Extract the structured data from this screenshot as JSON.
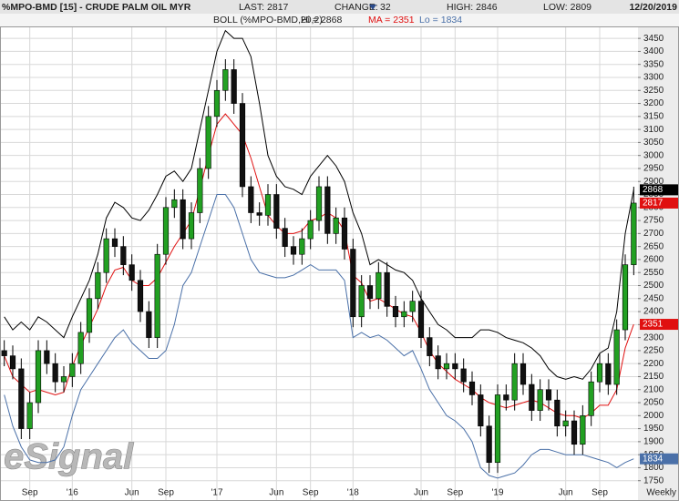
{
  "header": {
    "title": "%MPO-BMD [15] - CRUDE PALM OIL MYR",
    "last_label": "LAST:",
    "last": 2817,
    "change_label": "CHANGE:",
    "change": 32,
    "high_label": "HIGH:",
    "high": 2846,
    "low_label": "LOW:",
    "low": 2809,
    "date": "12/20/2019"
  },
  "chart_data": {
    "type": "candlestick",
    "indicator": "BOLL (%MPO-BMD,20,2)",
    "periodicity": "Weekly",
    "watermark": "eSignal",
    "up_color": "#22a022",
    "down_color": "#111111",
    "categories": [
      null,
      null,
      null,
      "Sep",
      null,
      null,
      null,
      null,
      "'16",
      null,
      null,
      null,
      null,
      null,
      null,
      "Jun",
      null,
      null,
      null,
      "Sep",
      null,
      null,
      null,
      null,
      null,
      "'17",
      null,
      null,
      null,
      null,
      null,
      null,
      "Jun",
      null,
      null,
      null,
      "Sep",
      null,
      null,
      null,
      null,
      "'18",
      null,
      null,
      null,
      null,
      null,
      null,
      null,
      "Jun",
      null,
      null,
      null,
      "Sep",
      null,
      null,
      null,
      null,
      "'19",
      null,
      null,
      null,
      null,
      null,
      null,
      null,
      "Jun",
      null,
      null,
      null,
      "Sep",
      null,
      null,
      null,
      null
    ],
    "open": [
      2250,
      2230,
      2180,
      1950,
      2050,
      2250,
      2200,
      2130,
      2150,
      2200,
      2320,
      2450,
      2550,
      2680,
      2650,
      2580,
      2520,
      2400,
      2300,
      2620,
      2800,
      2830,
      2680,
      2780,
      2950,
      3150,
      3250,
      3330,
      3200,
      2880,
      2780,
      2770,
      2850,
      2720,
      2650,
      2620,
      2680,
      2750,
      2880,
      2700,
      2760,
      2640,
      2380,
      2500,
      2450,
      2550,
      2420,
      2380,
      2400,
      2440,
      2300,
      2230,
      2180,
      2200,
      2180,
      2130,
      2080,
      1960,
      1820,
      2080,
      2060,
      2200,
      2120,
      2020,
      2100,
      2060,
      1960,
      1980,
      1890,
      2000,
      2130,
      2200,
      2120,
      2330,
      2580
    ],
    "high": [
      2290,
      2270,
      2220,
      2090,
      2290,
      2290,
      2240,
      2190,
      2240,
      2360,
      2490,
      2590,
      2720,
      2720,
      2690,
      2620,
      2560,
      2440,
      2660,
      2840,
      2870,
      2870,
      2820,
      2990,
      3190,
      3290,
      3370,
      3370,
      3240,
      2920,
      2820,
      2890,
      2890,
      2760,
      2690,
      2720,
      2790,
      2920,
      2920,
      2800,
      2800,
      2680,
      2540,
      2540,
      2590,
      2590,
      2460,
      2440,
      2480,
      2480,
      2340,
      2270,
      2240,
      2240,
      2220,
      2170,
      2120,
      2000,
      2120,
      2120,
      2240,
      2240,
      2160,
      2140,
      2140,
      2100,
      2020,
      2020,
      2040,
      2170,
      2240,
      2240,
      2370,
      2620,
      2880
    ],
    "low": [
      2190,
      2140,
      1910,
      1910,
      2010,
      2160,
      2090,
      2090,
      2110,
      2160,
      2280,
      2410,
      2510,
      2610,
      2540,
      2480,
      2360,
      2260,
      2260,
      2580,
      2760,
      2640,
      2640,
      2740,
      2910,
      3110,
      3210,
      3160,
      2840,
      2740,
      2730,
      2730,
      2680,
      2610,
      2580,
      2580,
      2640,
      2710,
      2660,
      2660,
      2600,
      2340,
      2340,
      2410,
      2410,
      2380,
      2340,
      2340,
      2360,
      2260,
      2190,
      2140,
      2140,
      2140,
      2090,
      2040,
      1920,
      1780,
      1780,
      2020,
      2020,
      2080,
      1980,
      1980,
      2020,
      1920,
      1920,
      1850,
      1850,
      1960,
      2090,
      2080,
      2080,
      2290,
      2540
    ],
    "close": [
      2230,
      2180,
      1950,
      2050,
      2250,
      2200,
      2130,
      2150,
      2200,
      2320,
      2450,
      2550,
      2680,
      2650,
      2580,
      2520,
      2400,
      2300,
      2620,
      2800,
      2830,
      2680,
      2780,
      2950,
      3150,
      3250,
      3330,
      3200,
      2880,
      2780,
      2770,
      2850,
      2720,
      2650,
      2620,
      2680,
      2750,
      2880,
      2700,
      2760,
      2640,
      2380,
      2500,
      2450,
      2550,
      2420,
      2380,
      2400,
      2440,
      2300,
      2230,
      2180,
      2200,
      2180,
      2130,
      2080,
      1960,
      1820,
      2080,
      2060,
      2200,
      2120,
      2020,
      2100,
      2060,
      1960,
      1980,
      1890,
      2000,
      2130,
      2200,
      2120,
      2330,
      2580,
      2817
    ],
    "series": [
      {
        "name": "Hi =",
        "color": "#000000",
        "values": [
          2380,
          2330,
          2360,
          2330,
          2380,
          2360,
          2330,
          2300,
          2380,
          2450,
          2520,
          2620,
          2760,
          2820,
          2800,
          2760,
          2750,
          2790,
          2850,
          2920,
          2940,
          2900,
          2950,
          3100,
          3250,
          3400,
          3480,
          3450,
          3450,
          3380,
          3200,
          3000,
          2920,
          2880,
          2870,
          2850,
          2920,
          2960,
          3000,
          2960,
          2900,
          2780,
          2700,
          2580,
          2600,
          2580,
          2560,
          2550,
          2520,
          2450,
          2400,
          2350,
          2330,
          2300,
          2300,
          2300,
          2330,
          2330,
          2320,
          2300,
          2290,
          2280,
          2260,
          2230,
          2180,
          2150,
          2140,
          2150,
          2140,
          2180,
          2240,
          2260,
          2400,
          2700,
          2868
        ]
      },
      {
        "name": "MA =",
        "color": "#e01010",
        "values": [
          2230,
          2150,
          2120,
          2090,
          2100,
          2090,
          2080,
          2090,
          2190,
          2270,
          2340,
          2410,
          2500,
          2560,
          2570,
          2520,
          2500,
          2500,
          2530,
          2590,
          2650,
          2700,
          2750,
          2870,
          3000,
          3120,
          3160,
          3120,
          3080,
          2990,
          2880,
          2770,
          2730,
          2700,
          2700,
          2710,
          2750,
          2760,
          2780,
          2760,
          2710,
          2540,
          2510,
          2440,
          2450,
          2430,
          2410,
          2390,
          2380,
          2320,
          2250,
          2200,
          2170,
          2140,
          2120,
          2100,
          2070,
          2050,
          2040,
          2030,
          2040,
          2050,
          2060,
          2050,
          2030,
          2010,
          2000,
          2000,
          1990,
          2010,
          2040,
          2040,
          2100,
          2260,
          2351
        ]
      },
      {
        "name": "Lo =",
        "color": "#4a70a8",
        "values": [
          2080,
          1960,
          1880,
          1830,
          1820,
          1820,
          1830,
          1880,
          2000,
          2100,
          2150,
          2200,
          2250,
          2300,
          2330,
          2280,
          2250,
          2220,
          2220,
          2250,
          2350,
          2500,
          2550,
          2650,
          2750,
          2850,
          2850,
          2800,
          2700,
          2600,
          2550,
          2540,
          2530,
          2530,
          2540,
          2560,
          2580,
          2560,
          2560,
          2560,
          2520,
          2300,
          2320,
          2300,
          2310,
          2290,
          2260,
          2230,
          2250,
          2180,
          2100,
          2050,
          2000,
          1980,
          1950,
          1900,
          1800,
          1770,
          1760,
          1770,
          1780,
          1810,
          1850,
          1870,
          1870,
          1860,
          1850,
          1850,
          1850,
          1840,
          1830,
          1820,
          1800,
          1820,
          1834
        ]
      }
    ],
    "ylim": [
      1672,
      3496
    ],
    "yticks": [
      1750,
      1800,
      1850,
      1900,
      1950,
      2000,
      2050,
      2100,
      2150,
      2200,
      2250,
      2300,
      2350,
      2400,
      2450,
      2500,
      2550,
      2600,
      2650,
      2700,
      2750,
      2800,
      2850,
      2900,
      2950,
      3000,
      3050,
      3100,
      3150,
      3200,
      3250,
      3300,
      3350,
      3400,
      3450
    ],
    "grid": true
  }
}
